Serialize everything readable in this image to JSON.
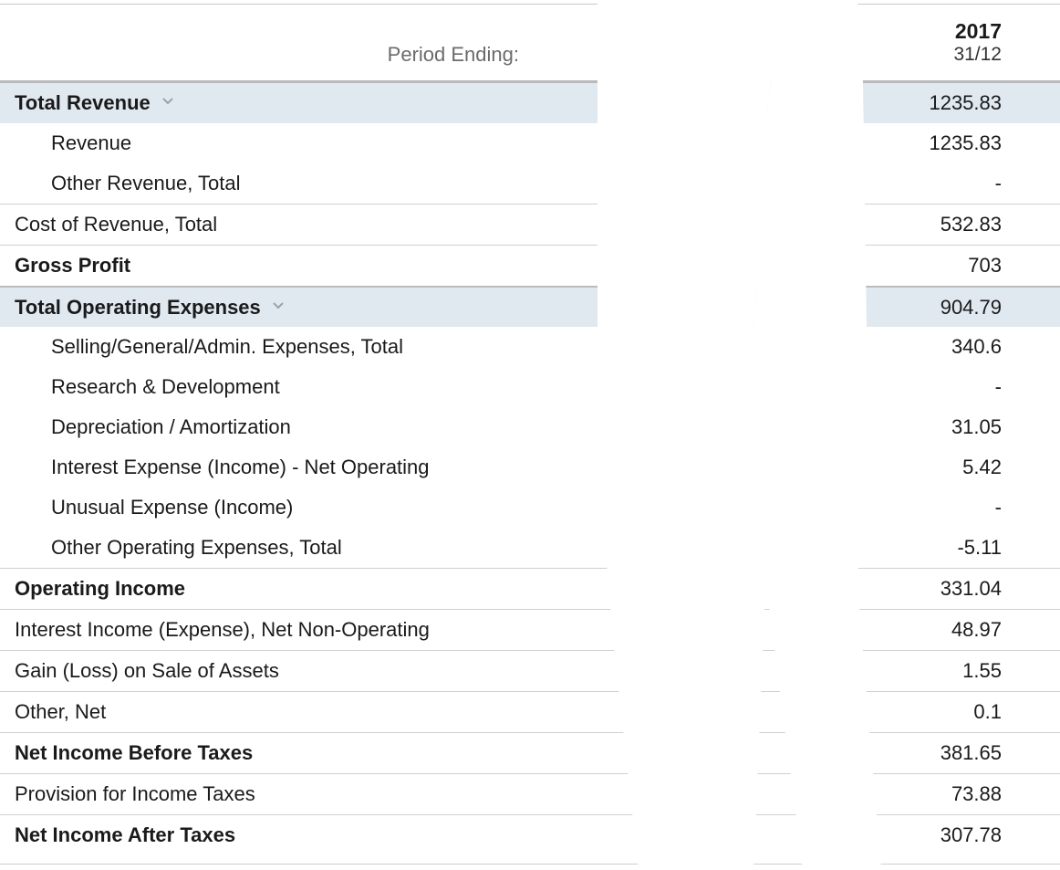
{
  "header": {
    "period_label": "Period Ending:",
    "year": "2017",
    "date": "31/12"
  },
  "rows": [
    {
      "label": "Total Revenue",
      "value": "1235.83",
      "style": "section bold",
      "expandable": true
    },
    {
      "label": "Revenue",
      "value": "1235.83",
      "style": "sub"
    },
    {
      "label": "Other Revenue, Total",
      "value": "-",
      "style": "sub"
    },
    {
      "label": "Cost of Revenue, Total",
      "value": "532.83",
      "style": "sep"
    },
    {
      "label": "Gross Profit",
      "value": "703",
      "style": "sep bold"
    },
    {
      "label": "Total Operating Expenses",
      "value": "904.79",
      "style": "sep thick section bold",
      "expandable": true
    },
    {
      "label": "Selling/General/Admin. Expenses, Total",
      "value": "340.6",
      "style": "sub"
    },
    {
      "label": "Research & Development",
      "value": "-",
      "style": "sub"
    },
    {
      "label": "Depreciation / Amortization",
      "value": "31.05",
      "style": "sub"
    },
    {
      "label": "Interest Expense (Income) - Net Operating",
      "value": "5.42",
      "style": "sub"
    },
    {
      "label": "Unusual Expense (Income)",
      "value": "-",
      "style": "sub"
    },
    {
      "label": "Other Operating Expenses, Total",
      "value": "-5.11",
      "style": "sub"
    },
    {
      "label": "Operating Income",
      "value": "331.04",
      "style": "sep bold"
    },
    {
      "label": "Interest Income (Expense), Net Non-Operating",
      "value": "48.97",
      "style": "sep"
    },
    {
      "label": "Gain (Loss) on Sale of Assets",
      "value": "1.55",
      "style": "sep"
    },
    {
      "label": "Other, Net",
      "value": "0.1",
      "style": "sep"
    },
    {
      "label": "Net Income Before Taxes",
      "value": "381.65",
      "style": "sep bold"
    },
    {
      "label": "Provision for Income Taxes",
      "value": "73.88",
      "style": "sep"
    },
    {
      "label": "Net Income After Taxes",
      "value": "307.78",
      "style": "sep bold"
    }
  ],
  "colors": {
    "section_bg": "#e0e8f0",
    "rule": "#d0d0d0",
    "chevron": "#9aa3ad"
  },
  "icons": {
    "expand": "chevron-down-icon"
  }
}
